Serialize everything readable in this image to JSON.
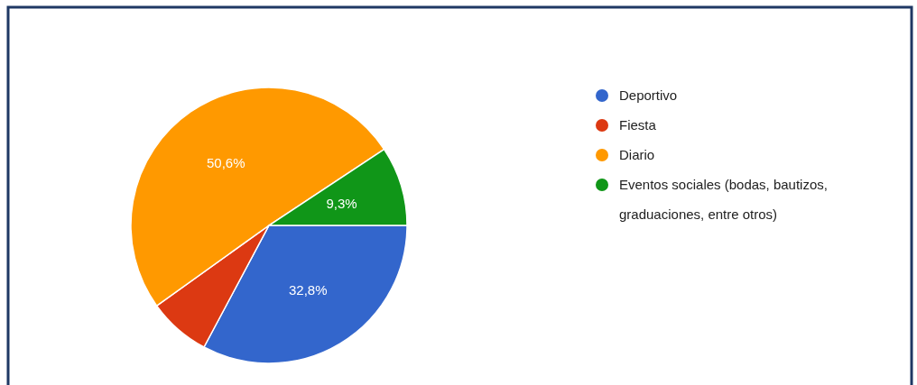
{
  "chart_data": {
    "type": "pie",
    "categories": [
      "Deportivo",
      "Fiesta",
      "Diario",
      "Eventos sociales (bodas, bautizos, graduaciones, entre otros)"
    ],
    "values": [
      32.8,
      7.3,
      50.6,
      9.3
    ],
    "colors": [
      "#3366cc",
      "#dc3912",
      "#ff9900",
      "#109618"
    ],
    "value_labels": [
      "32,8%",
      null,
      "50,6%",
      "9,3%"
    ],
    "legend": "right"
  }
}
